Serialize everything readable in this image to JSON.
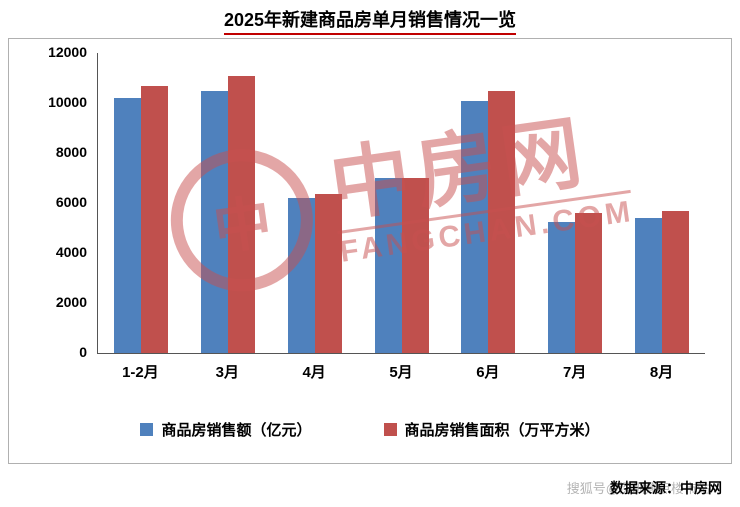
{
  "title": "2025年新建商品房单月销售情况一览",
  "chart_data": {
    "type": "bar",
    "categories": [
      "1-2月",
      "3月",
      "4月",
      "5月",
      "6月",
      "7月",
      "8月"
    ],
    "series": [
      {
        "name": "商品房销售额（亿元）",
        "color": "#4F81BD",
        "values": [
          10200,
          10500,
          6200,
          7000,
          10100,
          5250,
          5400
        ]
      },
      {
        "name": "商品房销售面积（万平方米）",
        "color": "#C0504D",
        "values": [
          10700,
          11100,
          6350,
          7000,
          10500,
          5600,
          5700
        ]
      }
    ],
    "title": "2025年新建商品房单月销售情况一览",
    "xlabel": "",
    "ylabel": "",
    "ylim": [
      0,
      12000
    ],
    "ytick_step": 2000,
    "grid": false,
    "legend_position": "bottom"
  },
  "watermark": {
    "logo_glyph": "中",
    "logo_text": "中房网",
    "domain": "FANGCHAN.COM"
  },
  "footer": {
    "source_label": "数据来源：中房网",
    "overlay_text": "搜狐号@深圳焦点楼市站"
  }
}
